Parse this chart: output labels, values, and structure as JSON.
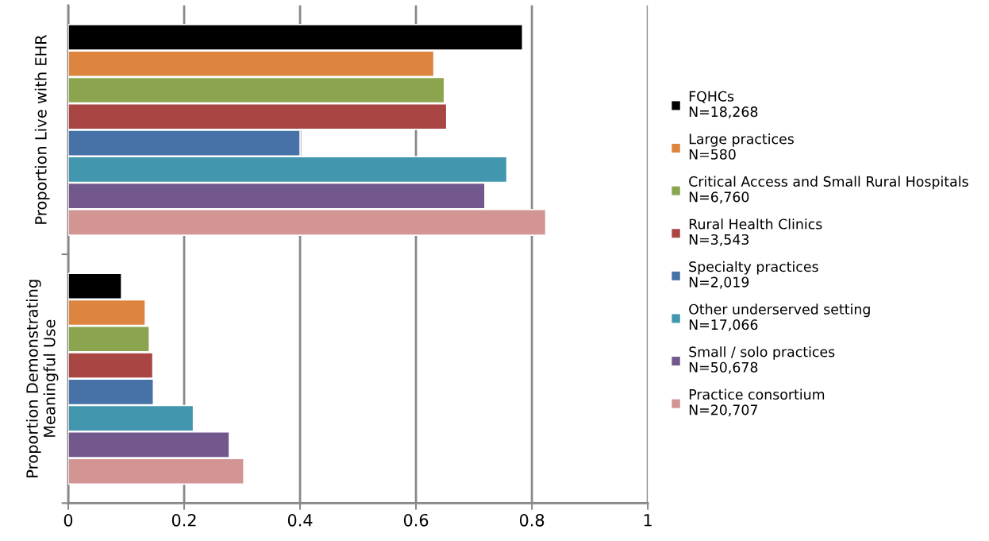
{
  "chart_data": {
    "type": "bar",
    "orientation": "horizontal",
    "categories": [
      "Proportion Live with EHR",
      "Proportion Demonstrating\nMeaningful Use"
    ],
    "series": [
      {
        "name": "FQHCs\nN=18,268",
        "color": "#000000",
        "values": [
          0.784,
          0.092
        ]
      },
      {
        "name": "Large practices\nN=580",
        "color": "#dd843f",
        "values": [
          0.631,
          0.133
        ]
      },
      {
        "name": "Critical Access and Small Rural Hospitals\nN=6,760",
        "color": "#8ba54f",
        "values": [
          0.649,
          0.14
        ]
      },
      {
        "name": "Rural Health Clinics\nN=3,543",
        "color": "#a94644",
        "values": [
          0.653,
          0.146
        ]
      },
      {
        "name": "Specialty practices\nN=2,019",
        "color": "#4672a8",
        "values": [
          0.4,
          0.147
        ]
      },
      {
        "name": "Other underserved setting\nN=17,066",
        "color": "#4297ae",
        "values": [
          0.757,
          0.216
        ]
      },
      {
        "name": "Small / solo practices\nN=50,678",
        "color": "#72588d",
        "values": [
          0.719,
          0.278
        ]
      },
      {
        "name": "Practice consortium\nN=20,707",
        "color": "#d39494",
        "values": [
          0.824,
          0.303
        ]
      }
    ],
    "xlim": [
      0,
      1
    ],
    "xticks": [
      0,
      0.2,
      0.4,
      0.6,
      0.8,
      1
    ],
    "grid": "x",
    "legend": "right"
  }
}
